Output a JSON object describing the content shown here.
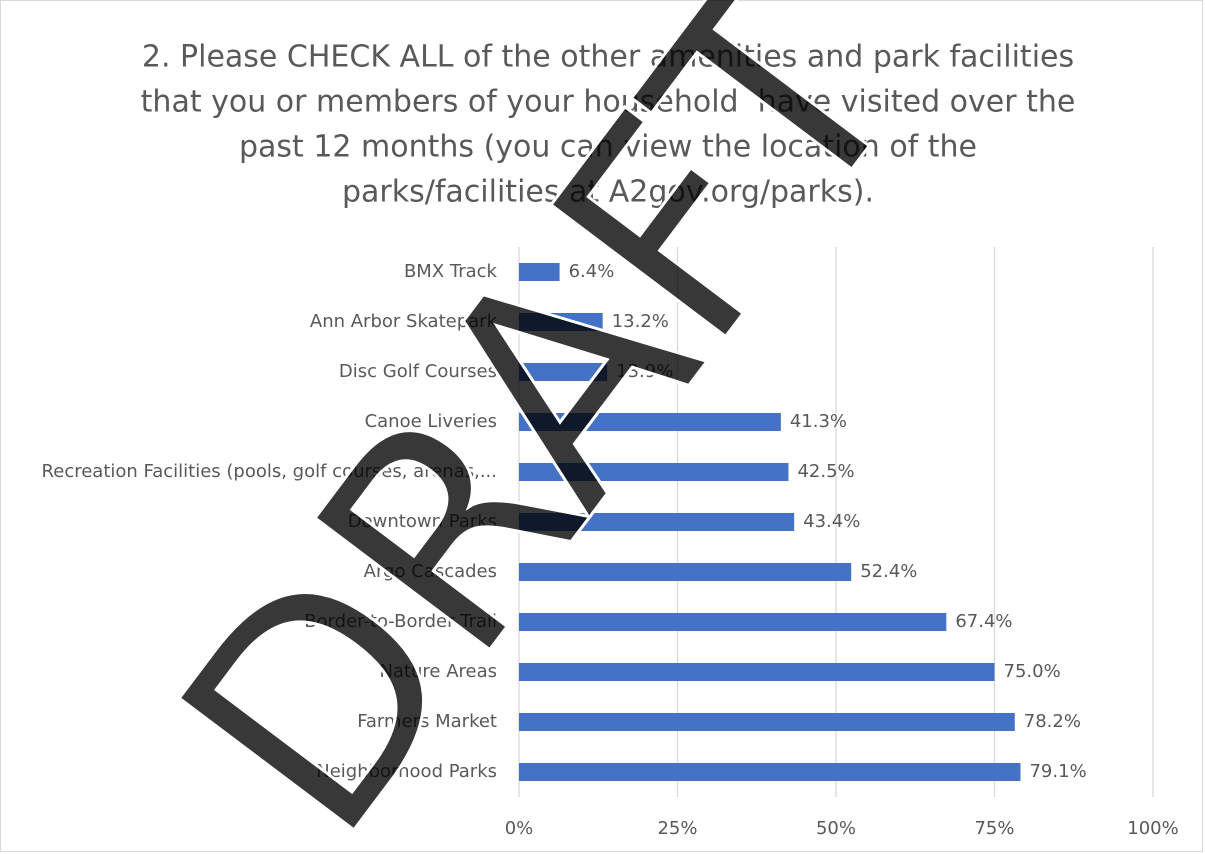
{
  "chart_data": {
    "type": "barh",
    "title": [
      "2. Please CHECK ALL of the other amenities and park facilities",
      "that you or members of your household  have visited over the",
      "past 12 months (you can view the location of the",
      "parks/facilities at A2gov.org/parks)."
    ],
    "categories": [
      "BMX Track",
      "Ann Arbor Skatepark",
      "Disc Golf Courses",
      "Canoe Liveries",
      "Recreation Facilities (pools, golf courses, arenas,...",
      "Downtown Parks",
      "Argo Cascades",
      "Border-to-Border Trail",
      "Nature Areas",
      "Farmers Market",
      "Neighborhood Parks"
    ],
    "values": [
      6.4,
      13.2,
      13.9,
      41.3,
      42.5,
      43.4,
      52.4,
      67.4,
      75.0,
      78.2,
      79.1
    ],
    "value_labels": [
      "6.4%",
      "13.2%",
      "13.9%",
      "41.3%",
      "42.5%",
      "43.4%",
      "52.4%",
      "67.4%",
      "75.0%",
      "78.2%",
      "79.1%"
    ],
    "color": "#4472c4",
    "xlim": [
      0,
      100
    ],
    "xticks": [
      {
        "value": 0,
        "label": "0%"
      },
      {
        "value": 25,
        "label": "25%"
      },
      {
        "value": 50,
        "label": "50%"
      },
      {
        "value": 75,
        "label": "75%"
      },
      {
        "value": 100,
        "label": "100%"
      }
    ],
    "grid": true,
    "watermark": "DRAFT"
  }
}
